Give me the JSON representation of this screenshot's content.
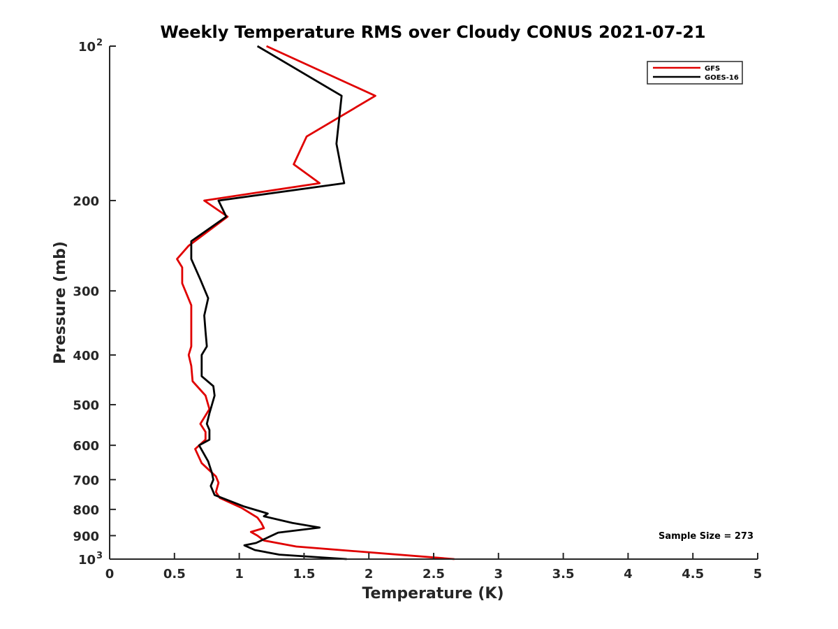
{
  "chart_data": {
    "type": "line",
    "title": "Weekly Temperature RMS over Cloudy CONUS 2021-07-21",
    "xlabel": "Temperature (K)",
    "ylabel": "Pressure (mb)",
    "xlim": [
      0,
      5
    ],
    "ylim": [
      100,
      1000
    ],
    "yscale": "log",
    "yreversed": true,
    "x_ticks": [
      0,
      0.5,
      1,
      1.5,
      2,
      2.5,
      3,
      3.5,
      4,
      4.5,
      5
    ],
    "x_tick_labels": [
      "0",
      "0.5",
      "1",
      "1.5",
      "2",
      "2.5",
      "3",
      "3.5",
      "4",
      "4.5",
      "5"
    ],
    "y_ticks": [
      {
        "value": 100,
        "base": "10",
        "exp": "2",
        "label": ""
      },
      {
        "value": 200,
        "label": "200"
      },
      {
        "value": 300,
        "label": "300"
      },
      {
        "value": 400,
        "label": "400"
      },
      {
        "value": 500,
        "label": "500"
      },
      {
        "value": 600,
        "label": "600"
      },
      {
        "value": 700,
        "label": "700"
      },
      {
        "value": 800,
        "label": "800"
      },
      {
        "value": 900,
        "label": "900"
      },
      {
        "value": 1000,
        "base": "10",
        "exp": "3",
        "label": ""
      }
    ],
    "legend_position": "top-right",
    "annotation": "Sample Size = 273",
    "series": [
      {
        "name": "GFS",
        "color": "#e00000",
        "points": [
          [
            1.21,
            100
          ],
          [
            2.05,
            125
          ],
          [
            1.52,
            150
          ],
          [
            1.42,
            170
          ],
          [
            1.62,
            185
          ],
          [
            0.73,
            200
          ],
          [
            0.91,
            215
          ],
          [
            0.61,
            245
          ],
          [
            0.52,
            260
          ],
          [
            0.56,
            270
          ],
          [
            0.56,
            290
          ],
          [
            0.63,
            320
          ],
          [
            0.63,
            350
          ],
          [
            0.63,
            385
          ],
          [
            0.61,
            400
          ],
          [
            0.63,
            420
          ],
          [
            0.64,
            450
          ],
          [
            0.74,
            480
          ],
          [
            0.77,
            510
          ],
          [
            0.7,
            545
          ],
          [
            0.74,
            565
          ],
          [
            0.74,
            585
          ],
          [
            0.66,
            610
          ],
          [
            0.71,
            650
          ],
          [
            0.82,
            690
          ],
          [
            0.84,
            710
          ],
          [
            0.82,
            740
          ],
          [
            0.85,
            760
          ],
          [
            1.02,
            795
          ],
          [
            1.14,
            830
          ],
          [
            1.17,
            850
          ],
          [
            1.19,
            870
          ],
          [
            1.09,
            885
          ],
          [
            1.14,
            900
          ],
          [
            1.19,
            920
          ],
          [
            1.44,
            945
          ],
          [
            2.66,
            1000
          ]
        ]
      },
      {
        "name": "GOES-16",
        "color": "#000000",
        "points": [
          [
            1.14,
            100
          ],
          [
            1.79,
            125
          ],
          [
            1.75,
            155
          ],
          [
            1.79,
            175
          ],
          [
            1.81,
            185
          ],
          [
            0.84,
            200
          ],
          [
            0.9,
            215
          ],
          [
            0.63,
            240
          ],
          [
            0.63,
            260
          ],
          [
            0.7,
            285
          ],
          [
            0.76,
            310
          ],
          [
            0.73,
            335
          ],
          [
            0.74,
            360
          ],
          [
            0.75,
            385
          ],
          [
            0.71,
            400
          ],
          [
            0.71,
            440
          ],
          [
            0.8,
            460
          ],
          [
            0.81,
            480
          ],
          [
            0.77,
            520
          ],
          [
            0.75,
            545
          ],
          [
            0.77,
            560
          ],
          [
            0.77,
            585
          ],
          [
            0.69,
            600
          ],
          [
            0.76,
            645
          ],
          [
            0.79,
            680
          ],
          [
            0.8,
            700
          ],
          [
            0.78,
            720
          ],
          [
            0.81,
            750
          ],
          [
            1.04,
            790
          ],
          [
            1.22,
            815
          ],
          [
            1.19,
            825
          ],
          [
            1.41,
            850
          ],
          [
            1.62,
            868
          ],
          [
            1.3,
            888
          ],
          [
            1.13,
            930
          ],
          [
            1.04,
            940
          ],
          [
            1.12,
            960
          ],
          [
            1.31,
            980
          ],
          [
            1.83,
            1000
          ]
        ]
      }
    ]
  }
}
